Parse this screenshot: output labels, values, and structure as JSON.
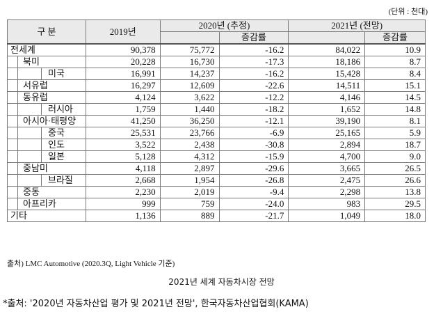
{
  "header": {
    "unit": "(단위 : 천대)"
  },
  "table": {
    "columns": [
      "구 분",
      "2019년",
      "2020년 (추정)",
      "증감률",
      "2021년 (전망)",
      "증감률"
    ],
    "total": {
      "label": "전세계",
      "cells": [
        "90,378",
        "75,772",
        "-16.2",
        "84,022",
        "10.9"
      ]
    },
    "regions": [
      {
        "label": "북미",
        "cells": [
          "20,228",
          "16,730",
          "-17.3",
          "18,186",
          "8.7"
        ],
        "sub": [
          {
            "label": "미국",
            "cells": [
              "16,991",
              "14,237",
              "-16.2",
              "15,428",
              "8.4"
            ]
          }
        ]
      },
      {
        "label": "서유럽",
        "cells": [
          "16,297",
          "12,609",
          "-22.6",
          "14,511",
          "15.1"
        ]
      },
      {
        "label": "동유럽",
        "cells": [
          "4,124",
          "3,622",
          "-12.2",
          "4,146",
          "14.5"
        ],
        "sub": [
          {
            "label": "러시아",
            "cells": [
              "1,759",
              "1,440",
              "-18.2",
              "1,652",
              "14.8"
            ]
          }
        ]
      },
      {
        "label": "아시아·태평양",
        "cells": [
          "41,250",
          "36,250",
          "-12.1",
          "39,190",
          "8.1"
        ],
        "sub": [
          {
            "label": "중국",
            "cells": [
              "25,531",
              "23,766",
              "-6.9",
              "25,165",
              "5.9"
            ]
          },
          {
            "label": "인도",
            "cells": [
              "3,522",
              "2,438",
              "-30.8",
              "2,894",
              "18.7"
            ]
          },
          {
            "label": "일본",
            "cells": [
              "5,128",
              "4,312",
              "-15.9",
              "4,700",
              "9.0"
            ]
          }
        ]
      },
      {
        "label": "중남미",
        "cells": [
          "4,118",
          "2,897",
          "-29.6",
          "3,665",
          "26.5"
        ],
        "sub": [
          {
            "label": "브라질",
            "cells": [
              "2,668",
              "1,954",
              "-26.8",
              "2,475",
              "26.6"
            ]
          }
        ]
      },
      {
        "label": "중동",
        "cells": [
          "2,230",
          "2,019",
          "-9.4",
          "2,298",
          "13.8"
        ]
      },
      {
        "label": "아프리카",
        "cells": [
          "999",
          "759",
          "-24.0",
          "983",
          "29.5"
        ]
      }
    ],
    "other": {
      "label": "기타",
      "cells": [
        "1,136",
        "889",
        "-21.7",
        "1,049",
        "18.0"
      ]
    }
  },
  "source": "출처) LMC Automotive (2020.3Q, Light Vehicle 기준)",
  "caption": "2021년 세계 자동차시장 전망",
  "footnote": "*출처: '2020년 자동차산업 평가 및 2021년 전망', 한국자동차산업협회(KAMA)"
}
